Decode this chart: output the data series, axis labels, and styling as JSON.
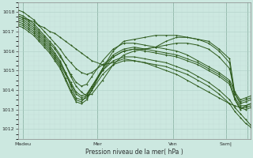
{
  "xlabel": "Pression niveau de la mer( hPa )",
  "ylim": [
    1011.5,
    1018.5
  ],
  "xlim": [
    0,
    132
  ],
  "yticks": [
    1012,
    1013,
    1014,
    1015,
    1016,
    1017,
    1018
  ],
  "xtick_positions": [
    3,
    45,
    88,
    118,
    130
  ],
  "xtick_labels": [
    "Madeu",
    "Mer",
    "Ven",
    "Sam|",
    ""
  ],
  "bg_color": "#cce8e0",
  "line_color": "#2d5a1b",
  "grid_major_color": "#b0d0c8",
  "grid_minor_color": "#c4ddd8",
  "series": [
    {
      "x": [
        0,
        3,
        6,
        9,
        12,
        15,
        18,
        21,
        24,
        27,
        30,
        33,
        36,
        39,
        42,
        48,
        54,
        60,
        66,
        72,
        78,
        84,
        90,
        96,
        102,
        108,
        114,
        120,
        123,
        126,
        129,
        132
      ],
      "y": [
        1017.8,
        1017.7,
        1017.6,
        1017.5,
        1017.3,
        1017.2,
        1017.0,
        1016.9,
        1016.7,
        1016.5,
        1016.3,
        1016.1,
        1015.9,
        1015.7,
        1015.5,
        1015.3,
        1015.4,
        1015.6,
        1015.5,
        1015.4,
        1015.2,
        1015.0,
        1014.8,
        1014.5,
        1014.2,
        1013.9,
        1013.6,
        1013.3,
        1013.2,
        1013.1,
        1013.0,
        1013.1
      ]
    },
    {
      "x": [
        0,
        3,
        6,
        9,
        12,
        15,
        18,
        21,
        24,
        27,
        30,
        33,
        36,
        39,
        42,
        48,
        54,
        60,
        66,
        72,
        78,
        84,
        90,
        96,
        102,
        108,
        114,
        120,
        123,
        126,
        129,
        132
      ],
      "y": [
        1017.9,
        1017.8,
        1017.6,
        1017.4,
        1017.1,
        1016.8,
        1016.5,
        1016.2,
        1015.8,
        1015.3,
        1014.7,
        1014.2,
        1013.9,
        1013.7,
        1013.8,
        1014.5,
        1015.3,
        1015.8,
        1016.0,
        1016.1,
        1016.2,
        1016.5,
        1016.7,
        1016.7,
        1016.6,
        1016.5,
        1016.1,
        1015.6,
        1013.8,
        1013.3,
        1013.4,
        1013.5
      ]
    },
    {
      "x": [
        0,
        3,
        6,
        9,
        12,
        15,
        18,
        21,
        24,
        27,
        30,
        33,
        36,
        39,
        42,
        48,
        54,
        60,
        66,
        72,
        78,
        84,
        90,
        96,
        102,
        108,
        114,
        120,
        123,
        126,
        129,
        132
      ],
      "y": [
        1017.7,
        1017.6,
        1017.4,
        1017.2,
        1016.9,
        1016.6,
        1016.3,
        1015.9,
        1015.5,
        1014.9,
        1014.2,
        1013.6,
        1013.5,
        1013.6,
        1014.0,
        1015.1,
        1016.0,
        1016.5,
        1016.6,
        1016.7,
        1016.8,
        1016.8,
        1016.8,
        1016.7,
        1016.6,
        1016.4,
        1016.0,
        1015.4,
        1013.5,
        1013.0,
        1013.2,
        1013.3
      ]
    },
    {
      "x": [
        0,
        3,
        6,
        9,
        12,
        15,
        18,
        21,
        24,
        27,
        30,
        33,
        36,
        39,
        42,
        48,
        54,
        60,
        66,
        72,
        78,
        84,
        90,
        96,
        102,
        108,
        114,
        120,
        123,
        126,
        129,
        132
      ],
      "y": [
        1017.8,
        1017.7,
        1017.5,
        1017.3,
        1017.0,
        1016.7,
        1016.4,
        1016.1,
        1015.7,
        1015.3,
        1014.8,
        1014.4,
        1014.2,
        1014.3,
        1014.7,
        1015.5,
        1016.1,
        1016.4,
        1016.4,
        1016.3,
        1016.2,
        1016.1,
        1016.0,
        1015.8,
        1015.5,
        1015.2,
        1014.9,
        1014.5,
        1013.9,
        1013.5,
        1013.6,
        1013.7
      ]
    },
    {
      "x": [
        0,
        3,
        6,
        9,
        12,
        15,
        18,
        21,
        24,
        27,
        30,
        33,
        36,
        39,
        42,
        48,
        54,
        60,
        66,
        72,
        78,
        84,
        90,
        96,
        102,
        108,
        114,
        120,
        123,
        126,
        129,
        132
      ],
      "y": [
        1018.1,
        1018.0,
        1017.8,
        1017.6,
        1017.3,
        1017.0,
        1016.7,
        1016.4,
        1016.1,
        1015.7,
        1015.4,
        1015.1,
        1014.9,
        1014.8,
        1014.9,
        1015.3,
        1015.7,
        1016.0,
        1016.1,
        1016.1,
        1016.2,
        1016.3,
        1016.4,
        1016.4,
        1016.3,
        1016.1,
        1015.7,
        1015.1,
        1013.8,
        1013.4,
        1013.5,
        1013.6
      ]
    },
    {
      "x": [
        0,
        3,
        6,
        9,
        12,
        15,
        18,
        21,
        24,
        27,
        30,
        33,
        36,
        39,
        42,
        48,
        54,
        60,
        66,
        72,
        78,
        84,
        90,
        96,
        102,
        108,
        114,
        120,
        123,
        126,
        129,
        132
      ],
      "y": [
        1017.5,
        1017.4,
        1017.2,
        1017.0,
        1016.7,
        1016.4,
        1016.1,
        1015.7,
        1015.3,
        1014.8,
        1014.3,
        1013.8,
        1013.6,
        1013.7,
        1014.1,
        1015.0,
        1015.7,
        1016.0,
        1016.1,
        1016.0,
        1015.9,
        1015.8,
        1015.7,
        1015.5,
        1015.3,
        1015.0,
        1014.7,
        1014.3,
        1013.5,
        1013.1,
        1013.1,
        1013.2
      ]
    },
    {
      "x": [
        0,
        3,
        6,
        9,
        12,
        15,
        18,
        21,
        24,
        27,
        30,
        33,
        36,
        39,
        42,
        48,
        54,
        60,
        66,
        72,
        78,
        84,
        90,
        96,
        102,
        108,
        114,
        120,
        123,
        126,
        129,
        132
      ],
      "y": [
        1017.6,
        1017.5,
        1017.3,
        1017.1,
        1016.8,
        1016.5,
        1016.2,
        1015.8,
        1015.4,
        1014.9,
        1014.4,
        1013.9,
        1013.7,
        1013.8,
        1014.2,
        1015.1,
        1015.8,
        1016.1,
        1016.2,
        1016.1,
        1016.0,
        1015.9,
        1015.8,
        1015.6,
        1015.4,
        1015.1,
        1014.8,
        1014.4,
        1013.6,
        1013.2,
        1013.2,
        1013.3
      ]
    },
    {
      "x": [
        0,
        3,
        6,
        9,
        12,
        15,
        18,
        21,
        24,
        27,
        30,
        33,
        36,
        39,
        42,
        48,
        54,
        60,
        66,
        72,
        78,
        84,
        90,
        96,
        102,
        108,
        114,
        120,
        123,
        126,
        129,
        132
      ],
      "y": [
        1017.4,
        1017.3,
        1017.1,
        1016.9,
        1016.6,
        1016.3,
        1016.0,
        1015.6,
        1015.2,
        1014.6,
        1014.0,
        1013.5,
        1013.4,
        1013.7,
        1014.2,
        1015.0,
        1015.5,
        1015.7,
        1015.7,
        1015.6,
        1015.5,
        1015.4,
        1015.2,
        1015.0,
        1014.7,
        1014.4,
        1014.0,
        1013.5,
        1013.1,
        1012.8,
        1012.5,
        1012.2
      ]
    },
    {
      "x": [
        0,
        3,
        6,
        9,
        12,
        15,
        18,
        21,
        24,
        27,
        30,
        33,
        36,
        39,
        42,
        48,
        54,
        60,
        66,
        72,
        78,
        84,
        90,
        96,
        102,
        108,
        114,
        120,
        123,
        126,
        129,
        132
      ],
      "y": [
        1017.3,
        1017.2,
        1017.0,
        1016.8,
        1016.5,
        1016.2,
        1015.9,
        1015.5,
        1015.1,
        1014.5,
        1013.9,
        1013.4,
        1013.3,
        1013.5,
        1014.0,
        1014.8,
        1015.3,
        1015.5,
        1015.5,
        1015.4,
        1015.3,
        1015.2,
        1015.0,
        1014.8,
        1014.5,
        1014.2,
        1013.8,
        1013.3,
        1012.9,
        1012.6,
        1012.3,
        1012.1
      ]
    }
  ]
}
